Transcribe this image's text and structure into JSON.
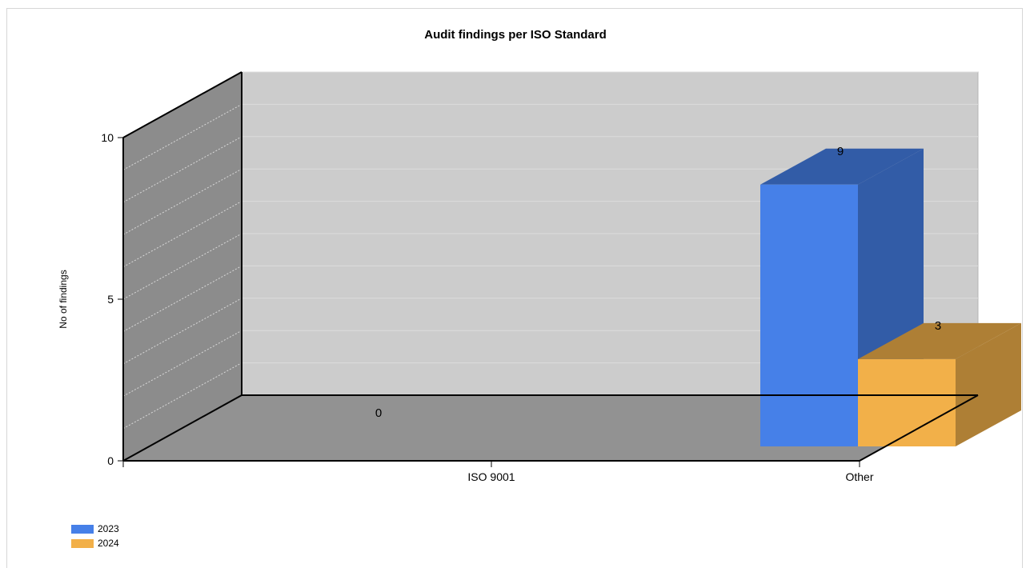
{
  "chart_data": {
    "type": "bar",
    "title": "Audit findings per ISO Standard",
    "xlabel": "",
    "ylabel": "No of findings",
    "categories": [
      "ISO 9001",
      "Other"
    ],
    "series": [
      {
        "name": "2023",
        "values": [
          0,
          9
        ],
        "color": "#4680e8"
      },
      {
        "name": "2024",
        "values": [
          0,
          3
        ],
        "color": "#f2b049"
      }
    ],
    "data_labels": [
      "0",
      "9",
      "3"
    ],
    "ylim": [
      0,
      10
    ],
    "yticks": [
      0,
      5,
      10
    ],
    "grid": true,
    "legend_position": "bottom-left",
    "style": "3d"
  }
}
